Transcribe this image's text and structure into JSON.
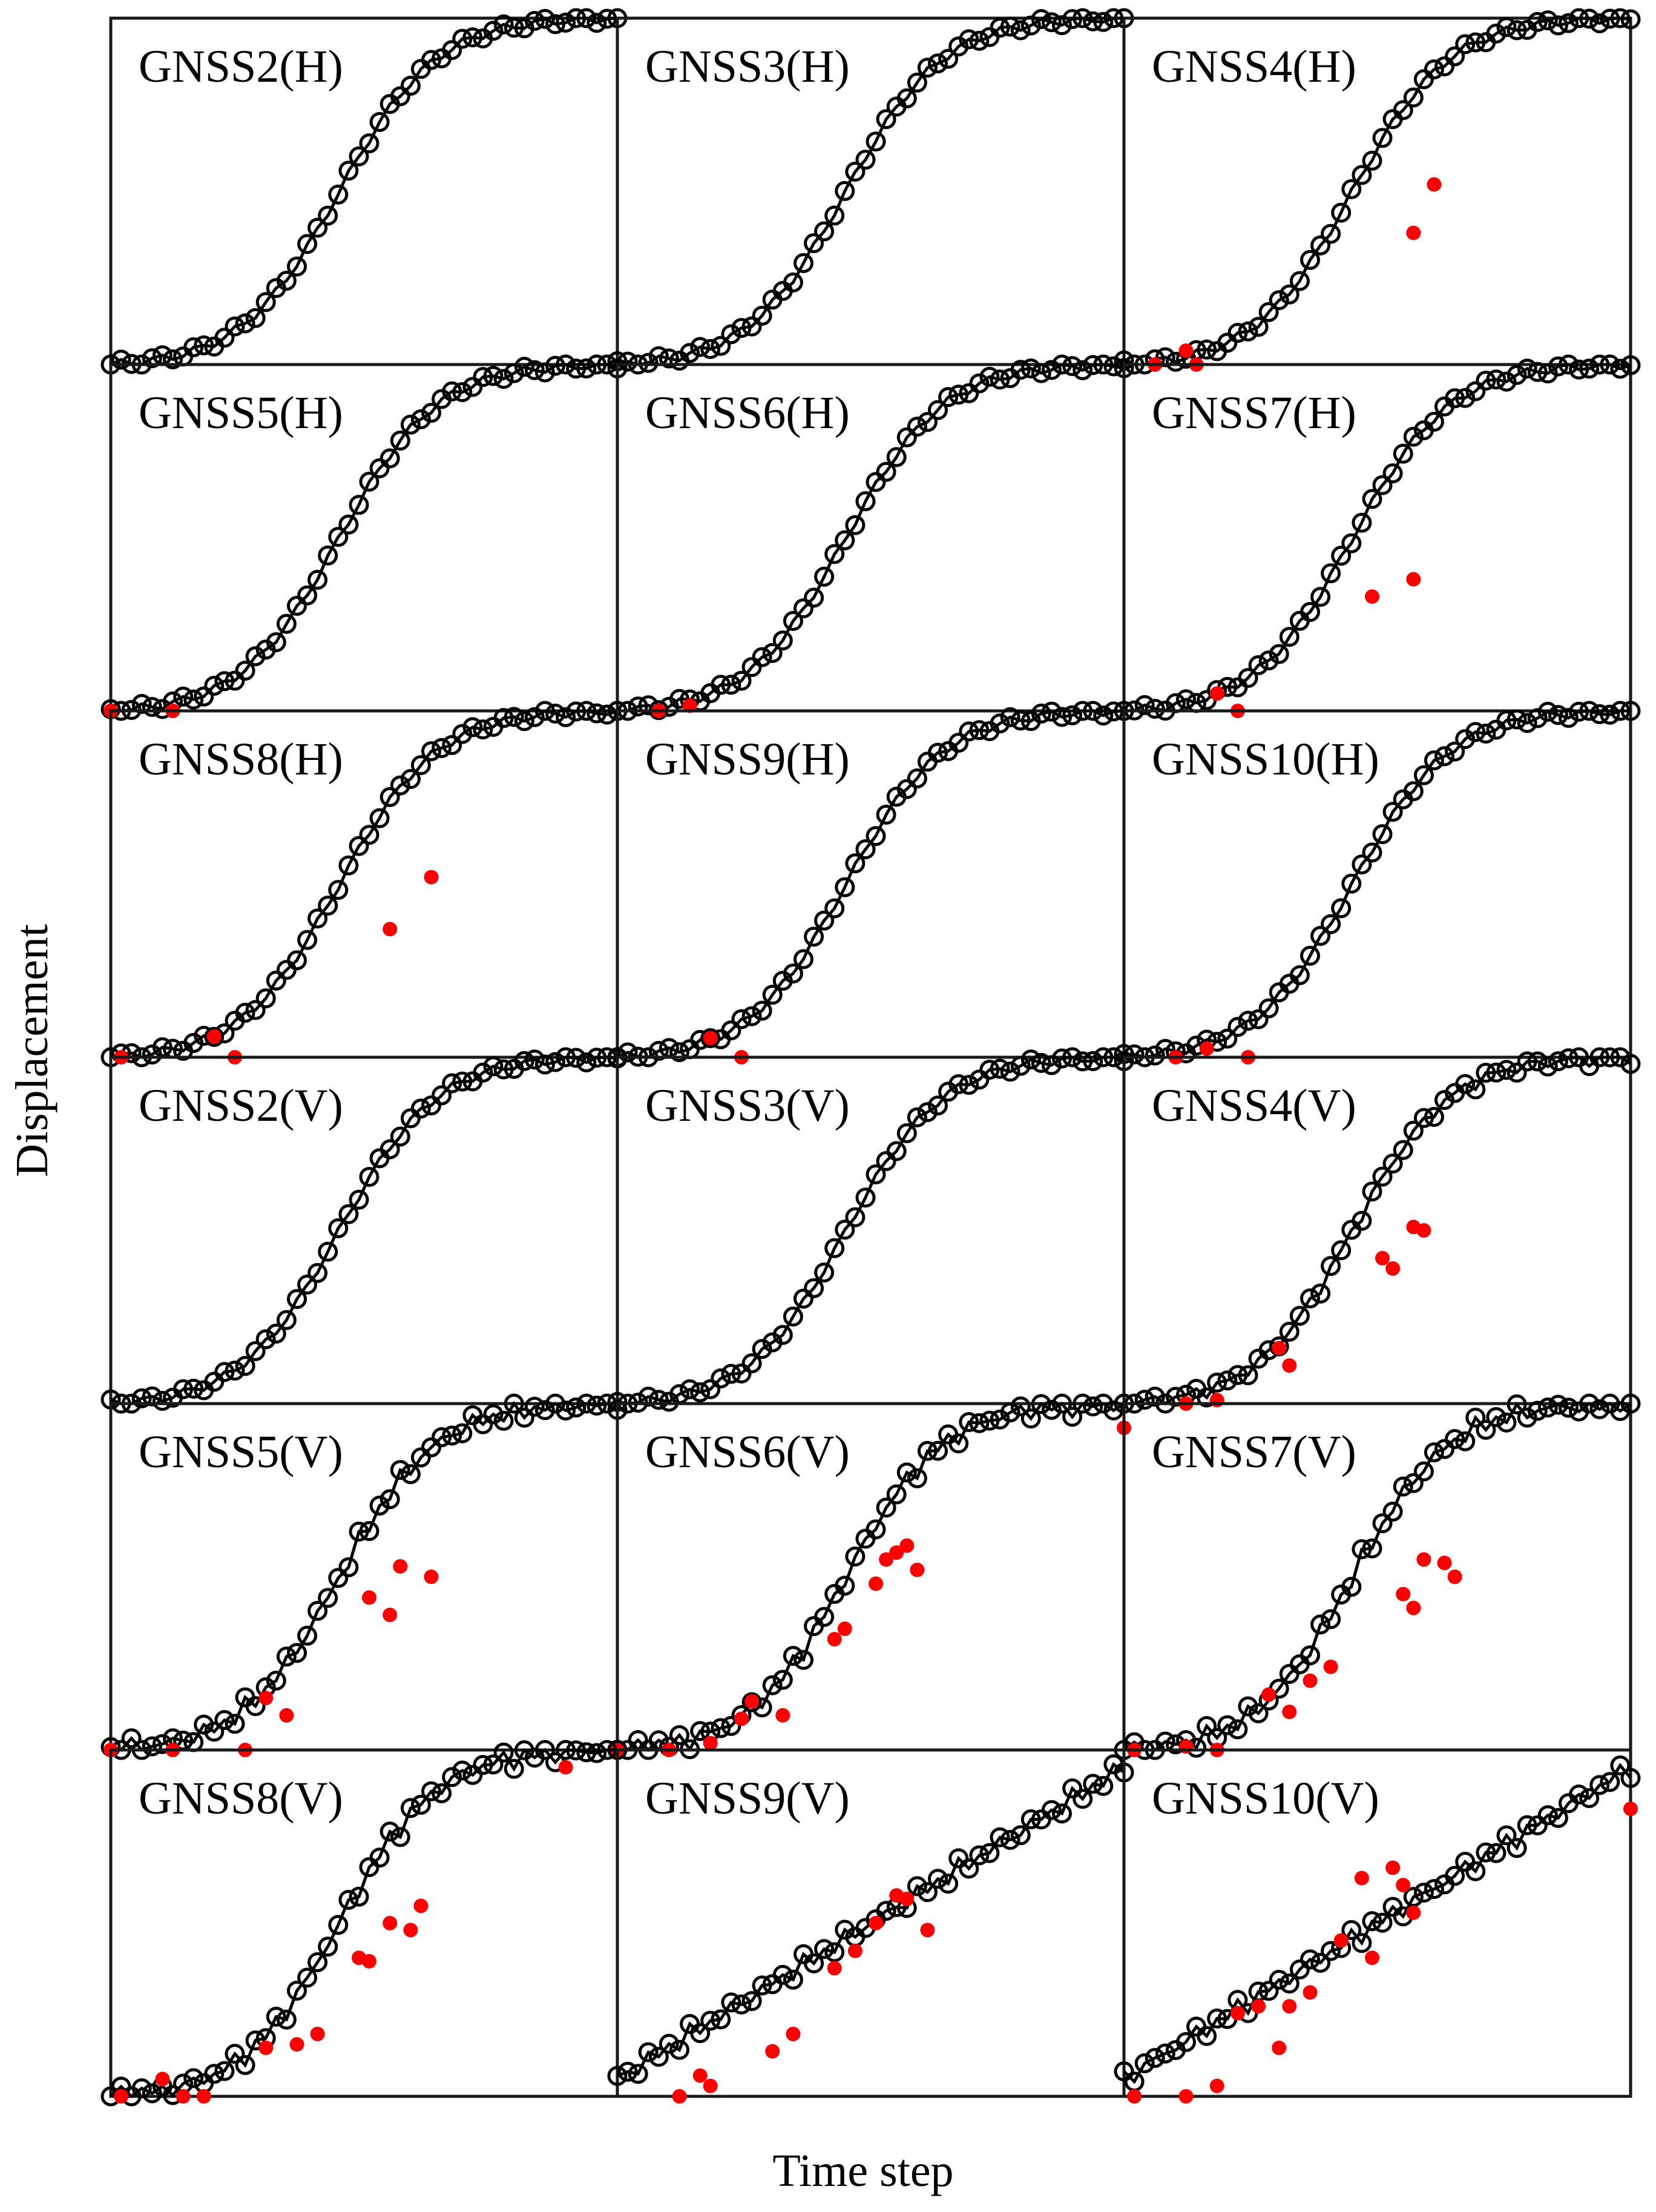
{
  "figure": {
    "xlabel": "Time step",
    "ylabel": "Displacement"
  },
  "style": {
    "line_color": "#000000",
    "marker_edge": "#000000",
    "outlier_color": "#ff0000",
    "frame_color": "#1a1a1a",
    "background": "#ffffff"
  },
  "chart_data": [
    {
      "type": "line",
      "title": "GNSS2(H)",
      "shape": "sigmoid",
      "component": "H",
      "noise": 0.0,
      "outliers": []
    },
    {
      "type": "line",
      "title": "GNSS3(H)",
      "shape": "sigmoid",
      "component": "H",
      "noise": 0.0,
      "outliers": []
    },
    {
      "type": "line",
      "title": "GNSS4(H)",
      "shape": "sigmoid",
      "component": "H",
      "noise": 0.0,
      "outliers": [
        {
          "x": 3,
          "y": -0.003
        },
        {
          "x": 6,
          "y": 0.04
        },
        {
          "x": 7,
          "y": -0.003
        },
        {
          "x": 28,
          "y": 0.38
        },
        {
          "x": 30,
          "y": 0.52
        }
      ]
    },
    {
      "type": "line",
      "title": "GNSS5(H)",
      "shape": "sigmoid",
      "component": "H",
      "noise": 0.0,
      "outliers": [
        {
          "x": 0,
          "y": -0.005
        },
        {
          "x": 6,
          "y": -0.005
        }
      ]
    },
    {
      "type": "line",
      "title": "GNSS6(H)",
      "shape": "sigmoid",
      "component": "H",
      "noise": 0.0,
      "outliers": [
        {
          "x": 4,
          "y": -0.005
        },
        {
          "x": 7,
          "y": 0.015
        }
      ]
    },
    {
      "type": "line",
      "title": "GNSS7(H)",
      "shape": "sigmoid",
      "component": "H",
      "noise": 0.0,
      "outliers": [
        {
          "x": 9,
          "y": 0.05
        },
        {
          "x": 11,
          "y": 0.0
        },
        {
          "x": 24,
          "y": 0.33
        },
        {
          "x": 28,
          "y": 0.38
        }
      ]
    },
    {
      "type": "line",
      "title": "GNSS8(H)",
      "shape": "sigmoid",
      "component": "H",
      "noise": 0.0,
      "outliers": [
        {
          "x": 1,
          "y": -0.005
        },
        {
          "x": 10,
          "y": 0.06
        },
        {
          "x": 12,
          "y": -0.005
        },
        {
          "x": 27,
          "y": 0.37
        },
        {
          "x": 31,
          "y": 0.52
        }
      ]
    },
    {
      "type": "line",
      "title": "GNSS9(H)",
      "shape": "sigmoid",
      "component": "H",
      "noise": 0.0,
      "outliers": [
        {
          "x": 9,
          "y": 0.055
        },
        {
          "x": 12,
          "y": 0.0
        }
      ]
    },
    {
      "type": "line",
      "title": "GNSS10(H)",
      "shape": "sigmoid",
      "component": "H",
      "noise": 0.0,
      "outliers": [
        {
          "x": 5,
          "y": -0.005
        },
        {
          "x": 8,
          "y": 0.025
        },
        {
          "x": 12,
          "y": 0.0
        }
      ]
    },
    {
      "type": "line",
      "title": "GNSS2(V)",
      "shape": "sigmoid",
      "component": "V",
      "noise": 0.0,
      "outliers": []
    },
    {
      "type": "line",
      "title": "GNSS3(V)",
      "shape": "sigmoid",
      "component": "V",
      "noise": 0.0,
      "outliers": []
    },
    {
      "type": "line",
      "title": "GNSS4(V)",
      "shape": "sigmoid",
      "component": "V",
      "noise": 0.01,
      "outliers": [
        {
          "x": 6,
          "y": 0.0
        },
        {
          "x": 9,
          "y": 0.01
        },
        {
          "x": 15,
          "y": 0.16
        },
        {
          "x": 16,
          "y": 0.11
        },
        {
          "x": 25,
          "y": 0.42
        },
        {
          "x": 26,
          "y": 0.39
        },
        {
          "x": 28,
          "y": 0.51
        },
        {
          "x": 29,
          "y": 0.5
        }
      ]
    },
    {
      "type": "line",
      "title": "GNSS5(V)",
      "shape": "sigmoid",
      "component": "V",
      "noise": 0.02,
      "outliers": [
        {
          "x": 0,
          "y": -0.01
        },
        {
          "x": 6,
          "y": 0.0
        },
        {
          "x": 13,
          "y": 0.0
        },
        {
          "x": 15,
          "y": 0.15
        },
        {
          "x": 17,
          "y": 0.1
        },
        {
          "x": 25,
          "y": 0.44
        },
        {
          "x": 27,
          "y": 0.39
        },
        {
          "x": 28,
          "y": 0.53
        },
        {
          "x": 31,
          "y": 0.5
        }
      ]
    },
    {
      "type": "line",
      "title": "GNSS6(V)",
      "shape": "sigmoid",
      "component": "V",
      "noise": 0.02,
      "outliers": [
        {
          "x": 0,
          "y": -0.01
        },
        {
          "x": 5,
          "y": 0.0
        },
        {
          "x": 9,
          "y": 0.02
        },
        {
          "x": 12,
          "y": 0.09
        },
        {
          "x": 13,
          "y": 0.14
        },
        {
          "x": 16,
          "y": 0.1
        },
        {
          "x": 21,
          "y": 0.32
        },
        {
          "x": 22,
          "y": 0.35
        },
        {
          "x": 25,
          "y": 0.48
        },
        {
          "x": 26,
          "y": 0.55
        },
        {
          "x": 27,
          "y": 0.57
        },
        {
          "x": 28,
          "y": 0.59
        },
        {
          "x": 29,
          "y": 0.52
        },
        {
          "x": 49,
          "y": 0.93
        }
      ]
    },
    {
      "type": "line",
      "title": "GNSS7(V)",
      "shape": "sigmoid",
      "component": "V",
      "noise": 0.02,
      "outliers": [
        {
          "x": 1,
          "y": 0.0
        },
        {
          "x": 6,
          "y": 0.01
        },
        {
          "x": 9,
          "y": 0.0
        },
        {
          "x": 14,
          "y": 0.16
        },
        {
          "x": 16,
          "y": 0.11
        },
        {
          "x": 18,
          "y": 0.2
        },
        {
          "x": 20,
          "y": 0.24
        },
        {
          "x": 27,
          "y": 0.45
        },
        {
          "x": 28,
          "y": 0.41
        },
        {
          "x": 29,
          "y": 0.55
        },
        {
          "x": 31,
          "y": 0.54
        },
        {
          "x": 32,
          "y": 0.5
        }
      ]
    },
    {
      "type": "line",
      "title": "GNSS8(V)",
      "shape": "sigmoid",
      "component": "V",
      "noise": 0.02,
      "outliers": [
        {
          "x": 1,
          "y": -0.015
        },
        {
          "x": 5,
          "y": 0.05
        },
        {
          "x": 7,
          "y": 0.0
        },
        {
          "x": 9,
          "y": 0.0
        },
        {
          "x": 15,
          "y": 0.14
        },
        {
          "x": 18,
          "y": 0.15
        },
        {
          "x": 20,
          "y": 0.18
        },
        {
          "x": 24,
          "y": 0.4
        },
        {
          "x": 25,
          "y": 0.39
        },
        {
          "x": 27,
          "y": 0.5
        },
        {
          "x": 29,
          "y": 0.48
        },
        {
          "x": 30,
          "y": 0.55
        },
        {
          "x": 44,
          "y": 0.95
        }
      ]
    },
    {
      "type": "line",
      "title": "GNSS9(V)",
      "shape": "linear",
      "component": "V",
      "noise": 0.02,
      "outliers": [
        {
          "x": 6,
          "y": 0.0
        },
        {
          "x": 8,
          "y": 0.06
        },
        {
          "x": 9,
          "y": 0.03
        },
        {
          "x": 15,
          "y": 0.13
        },
        {
          "x": 17,
          "y": 0.18
        },
        {
          "x": 21,
          "y": 0.37
        },
        {
          "x": 23,
          "y": 0.42
        },
        {
          "x": 25,
          "y": 0.5
        },
        {
          "x": 27,
          "y": 0.58
        },
        {
          "x": 28,
          "y": 0.57
        },
        {
          "x": 30,
          "y": 0.48
        }
      ]
    },
    {
      "type": "line",
      "title": "GNSS10(V)",
      "shape": "linear",
      "component": "V",
      "noise": 0.02,
      "outliers": [
        {
          "x": 1,
          "y": 0.0
        },
        {
          "x": 6,
          "y": 0.0
        },
        {
          "x": 9,
          "y": 0.03
        },
        {
          "x": 11,
          "y": 0.24
        },
        {
          "x": 13,
          "y": 0.26
        },
        {
          "x": 15,
          "y": 0.14
        },
        {
          "x": 16,
          "y": 0.26
        },
        {
          "x": 18,
          "y": 0.3
        },
        {
          "x": 21,
          "y": 0.45
        },
        {
          "x": 23,
          "y": 0.63
        },
        {
          "x": 24,
          "y": 0.4
        },
        {
          "x": 26,
          "y": 0.66
        },
        {
          "x": 27,
          "y": 0.61
        },
        {
          "x": 28,
          "y": 0.53
        },
        {
          "x": 49,
          "y": 0.83
        }
      ]
    }
  ]
}
